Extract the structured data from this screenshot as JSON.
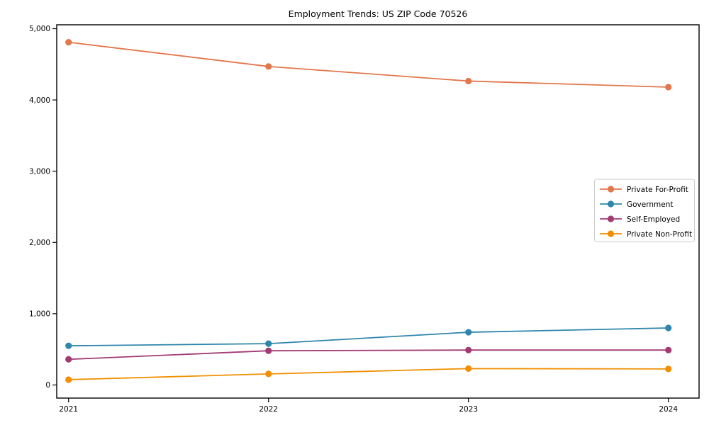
{
  "figure": {
    "background": "#ffffff",
    "axis_color": "#000000",
    "legend_border_color": "#cccccc"
  },
  "chart_data": {
    "type": "line",
    "title": "Employment Trends: US ZIP Code 70526",
    "xlabel": "",
    "ylabel": "",
    "x": [
      "2021",
      "2022",
      "2023",
      "2024"
    ],
    "series": [
      {
        "name": "Private For-Profit",
        "color": "#E2774B",
        "values": [
          4810,
          4470,
          4265,
          4180
        ]
      },
      {
        "name": "Government",
        "color": "#2E86AB",
        "values": [
          550,
          580,
          740,
          800
        ]
      },
      {
        "name": "Self-Employed",
        "color": "#A23B72",
        "values": [
          360,
          480,
          490,
          490
        ]
      },
      {
        "name": "Private Non-Profit",
        "color": "#F18F01",
        "values": [
          75,
          155,
          230,
          225
        ]
      }
    ],
    "ylim": [
      0,
      5000
    ],
    "yticks": [
      0,
      1000,
      2000,
      3000,
      4000,
      5000
    ],
    "ytick_labels": [
      "0",
      "1,000",
      "2,000",
      "3,000",
      "4,000",
      "5,000"
    ],
    "grid": false,
    "legend_position": "center right"
  }
}
